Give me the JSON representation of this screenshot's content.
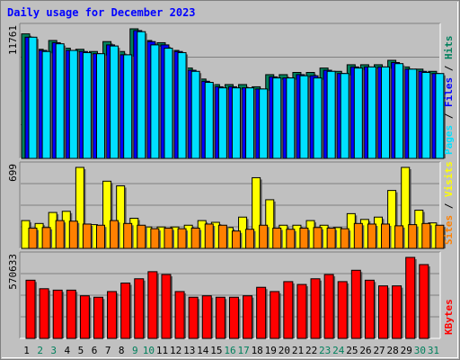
{
  "chart_data": {
    "type": "bar",
    "title": "Daily usage for December 2023",
    "x": [
      "1",
      "2",
      "3",
      "4",
      "5",
      "6",
      "7",
      "8",
      "9",
      "10",
      "11",
      "12",
      "13",
      "14",
      "15",
      "16",
      "17",
      "18",
      "19",
      "20",
      "21",
      "22",
      "23",
      "24",
      "25",
      "26",
      "27",
      "28",
      "29",
      "30",
      "31"
    ],
    "weekend_days": [
      "2",
      "3",
      "9",
      "10",
      "16",
      "17",
      "23",
      "24",
      "30",
      "31"
    ],
    "panels": [
      {
        "max_label": "11761",
        "ylim": [
          0,
          11761
        ],
        "legend": [
          "Pages",
          "Files",
          "Hits"
        ],
        "series": [
          {
            "name": "Hits",
            "color": "#00805c",
            "values": [
              11300,
              9900,
              10700,
              10000,
              9900,
              9700,
              10600,
              9700,
              11761,
              10700,
              10500,
              9800,
              8200,
              7200,
              6700,
              6700,
              6700,
              6500,
              7600,
              7600,
              7800,
              7800,
              8200,
              7900,
              8500,
              8500,
              8500,
              8900,
              8300,
              8100,
              7900
            ]
          },
          {
            "name": "Files",
            "color": "#0000ff",
            "values": [
              11000,
              9800,
              10500,
              9800,
              9700,
              9500,
              10300,
              9400,
              11600,
              10600,
              10300,
              9700,
              8000,
              7000,
              6500,
              6500,
              6400,
              6300,
              7400,
              7300,
              7600,
              7500,
              8000,
              7700,
              8300,
              8300,
              8300,
              8700,
              8100,
              7900,
              7700
            ]
          },
          {
            "name": "Pages",
            "color": "#00e0ff",
            "values": [
              11000,
              9700,
              10400,
              9800,
              9600,
              9500,
              10200,
              9400,
              11500,
              10300,
              10000,
              9600,
              7900,
              6900,
              6400,
              6400,
              6400,
              6300,
              7300,
              7300,
              7500,
              7300,
              7900,
              7700,
              8200,
              8300,
              8300,
              8600,
              8100,
              7800,
              7700
            ]
          }
        ]
      },
      {
        "max_label": "699",
        "ylim": [
          0,
          699
        ],
        "legend": [
          "Sites",
          "Visits"
        ],
        "series": [
          {
            "name": "Visits",
            "color": "#ffff00",
            "values": [
              240,
              215,
              310,
              320,
              699,
              205,
              580,
              540,
              260,
              185,
              185,
              185,
              200,
              240,
              225,
              180,
              270,
              610,
              420,
              200,
              200,
              240,
              200,
              180,
              300,
              250,
              270,
              500,
              699,
              330,
              220
            ]
          },
          {
            "name": "Sites",
            "color": "#ff8000",
            "values": [
              175,
              180,
              240,
              235,
              210,
              200,
              240,
              215,
              200,
              170,
              175,
              170,
              175,
              210,
              200,
              150,
              165,
              200,
              175,
              165,
              175,
              180,
              175,
              170,
              215,
              210,
              210,
              195,
              205,
              215,
              200
            ]
          }
        ]
      },
      {
        "max_label": "570633",
        "ylim": [
          0,
          570633
        ],
        "legend": [
          "KBytes"
        ],
        "series": [
          {
            "name": "KBytes",
            "color": "#ff0000",
            "values": [
              410000,
              350000,
              340000,
              340000,
              300000,
              290000,
              330000,
              390000,
              420000,
              470000,
              450000,
              330000,
              290000,
              300000,
              290000,
              290000,
              300000,
              360000,
              330000,
              400000,
              380000,
              420000,
              450000,
              400000,
              480000,
              410000,
              370000,
              370000,
              570633,
              520000,
              0
            ]
          }
        ]
      }
    ]
  }
}
